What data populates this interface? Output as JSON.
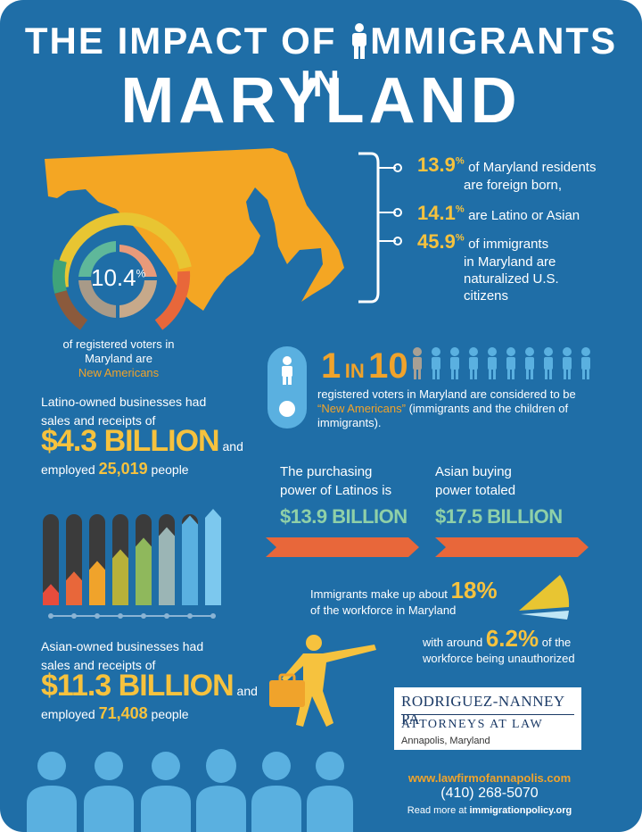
{
  "title": {
    "line1_a": "THE IMPACT OF ",
    "line1_b": "MMIGRANTS IN",
    "line2": "MARYLAND"
  },
  "donut": {
    "value": "10.4",
    "unit": "%",
    "caption_line1": "of registered voters in",
    "caption_line2": "Maryland are",
    "caption_highlight": "New Americans"
  },
  "stats": [
    {
      "value": "13.9",
      "unit": "%",
      "text_line1": "of Maryland residents",
      "text_line2": "are foreign born,"
    },
    {
      "value": "14.1",
      "unit": "%",
      "text_line1": "are Latino or Asian",
      "text_line2": ""
    },
    {
      "value": "45.9",
      "unit": "%",
      "text_line1": "of immigrants",
      "text_line2": "in Maryland are",
      "text_line3": "naturalized U.S.",
      "text_line4": "citizens"
    }
  ],
  "one_in_ten": {
    "one": "1",
    "in": "IN",
    "ten": "10",
    "line1": "registered voters in Maryland are considered to be",
    "highlight": "“New Americans”",
    "line2_rest": "(immigrants and the children of",
    "line3": "immigrants)."
  },
  "latino_business": {
    "line1": "Latino-owned businesses had",
    "line2": "sales and receipts of",
    "amount": "$4.3 BILLION",
    "and": "and",
    "employed": "employed",
    "count": "25,019",
    "people": "people"
  },
  "asian_business": {
    "line1": "Asian-owned businesses had",
    "line2": "sales and receipts of",
    "amount": "$11.3 BILLION",
    "and": "and",
    "employed": "employed",
    "count": "71,408",
    "people": "people"
  },
  "purchasing": {
    "latino_line1": "The purchasing",
    "latino_line2": "power of Latinos is",
    "latino_amount": "$13.9 BILLION",
    "asian_line1": "Asian buying",
    "asian_line2": "power totaled",
    "asian_amount": "$17.5 BILLION"
  },
  "workforce": {
    "line1": "Immigrants make up about",
    "pct1": "18%",
    "line2": "of the workforce in Maryland",
    "with": "with around",
    "pct2": "6.2%",
    "of_the": "of the",
    "line3": "workforce being unauthorized"
  },
  "firm": {
    "name": "RODRIGUEZ-NANNEY PA",
    "subtitle": "ATTORNEYS AT LAW",
    "location": "Annapolis, Maryland"
  },
  "contact": {
    "website": "www.lawfirmofannapolis.com",
    "phone": "(410) 268-5070",
    "read_more": "Read more at",
    "source": "immigrationpolicy.org"
  },
  "bar_chart": {
    "values": [
      0.22,
      0.35,
      0.46,
      0.58,
      0.7,
      0.81,
      0.93,
      1.0
    ],
    "colors": [
      "#e74c3c",
      "#e8673a",
      "#f0a32b",
      "#b8b13a",
      "#8fb85c",
      "#9bb5b5",
      "#5ab0e0",
      "#7cc8ee"
    ]
  },
  "colors": {
    "background": "#1f6ea7",
    "accent_gold": "#f6c23e",
    "accent_orange": "#e8673a",
    "maryland": "#f4a623"
  }
}
